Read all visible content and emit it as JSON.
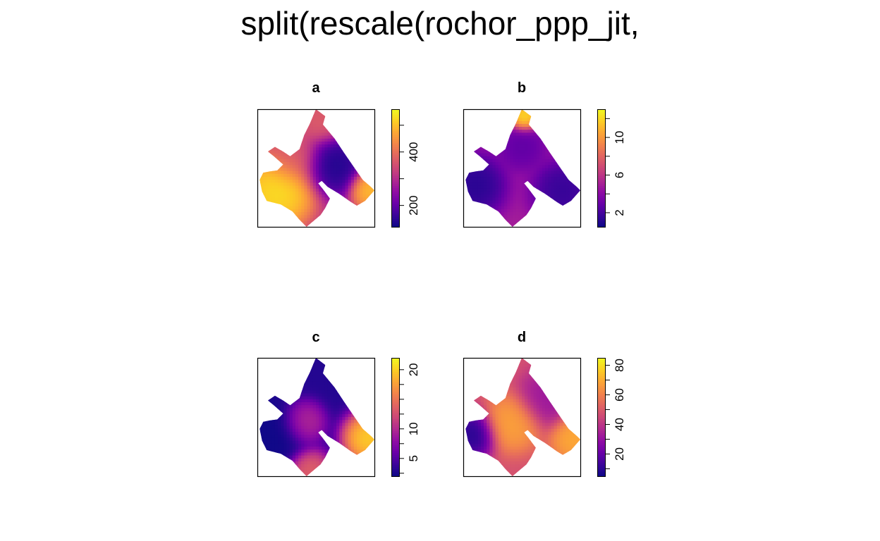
{
  "title": "split(rescale(rochor_ppp_jit,",
  "colors": {
    "palette": [
      "#0d0887",
      "#3b049a",
      "#6a00a8",
      "#900da4",
      "#b12a90",
      "#cc4778",
      "#e16462",
      "#f2844b",
      "#fca636",
      "#fcce25",
      "#f0f921"
    ]
  },
  "chart_data": [
    {
      "type": "heatmap",
      "title": "a",
      "zlim": [
        120,
        560
      ],
      "ticks": [
        200,
        400
      ],
      "tick_labels": [
        "200",
        "400"
      ],
      "hotspots": [
        {
          "x": 0.17,
          "y": 0.3,
          "value": 560,
          "spread": 0.16
        },
        {
          "x": 0.65,
          "y": 0.52,
          "value": 120,
          "spread": 0.13
        },
        {
          "x": 0.95,
          "y": 0.32,
          "value": 520,
          "spread": 0.08
        },
        {
          "x": 0.55,
          "y": 0.9,
          "value": 380,
          "spread": 0.1
        },
        {
          "x": 0.3,
          "y": 0.6,
          "value": 370,
          "spread": 0.12
        }
      ],
      "base": 300
    },
    {
      "type": "heatmap",
      "title": "b",
      "zlim": [
        0.5,
        13
      ],
      "ticks": [
        2,
        6,
        10
      ],
      "tick_labels": [
        "2",
        "6",
        "10"
      ],
      "hotspots": [
        {
          "x": 0.52,
          "y": 0.93,
          "value": 13,
          "spread": 0.06
        },
        {
          "x": 0.1,
          "y": 0.35,
          "value": 0.8,
          "spread": 0.13
        },
        {
          "x": 0.85,
          "y": 0.3,
          "value": 1.2,
          "spread": 0.13
        },
        {
          "x": 0.5,
          "y": 0.68,
          "value": 2.5,
          "spread": 0.1
        }
      ],
      "base": 5
    },
    {
      "type": "heatmap",
      "title": "c",
      "zlim": [
        2,
        22
      ],
      "ticks": [
        5,
        10,
        20
      ],
      "tick_labels": [
        "5",
        "10",
        "20"
      ],
      "hotspots": [
        {
          "x": 0.95,
          "y": 0.32,
          "value": 22,
          "spread": 0.11
        },
        {
          "x": 0.4,
          "y": 0.45,
          "value": 11,
          "spread": 0.09
        },
        {
          "x": 0.45,
          "y": 0.05,
          "value": 15,
          "spread": 0.09
        },
        {
          "x": 0.15,
          "y": 0.35,
          "value": 2,
          "spread": 0.14
        }
      ],
      "base": 3
    },
    {
      "type": "heatmap",
      "title": "d",
      "zlim": [
        5,
        85
      ],
      "ticks": [
        20,
        40,
        60,
        80
      ],
      "tick_labels": [
        "20",
        "40",
        "60",
        "80"
      ],
      "hotspots": [
        {
          "x": 0.42,
          "y": 0.45,
          "value": 70,
          "spread": 0.12
        },
        {
          "x": 0.95,
          "y": 0.32,
          "value": 72,
          "spread": 0.1
        },
        {
          "x": 0.08,
          "y": 0.35,
          "value": 5,
          "spread": 0.1
        },
        {
          "x": 0.7,
          "y": 0.65,
          "value": 30,
          "spread": 0.12
        }
      ],
      "base": 48
    }
  ]
}
